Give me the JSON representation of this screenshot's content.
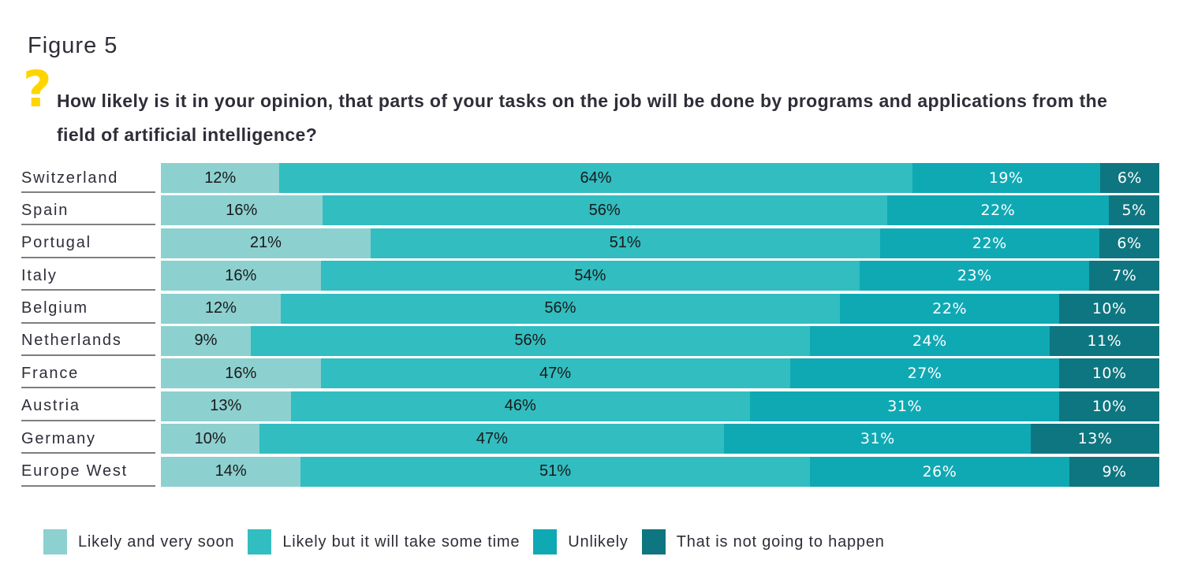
{
  "figure_label": "Figure 5",
  "question": {
    "icon_glyph": "?",
    "icon_color": "#ffd500",
    "lines": [
      "How likely is it in your opinion, that parts of your tasks on the job will be done by programs and applications from the",
      "field of artificial intelligence?"
    ]
  },
  "palette": {
    "ink": "#2e2e38",
    "rule": "#7f7f7f",
    "accent": "#ffd500"
  },
  "chart_data": {
    "type": "bar",
    "variant": "horizontal-stacked-100",
    "value_suffix": "%",
    "legend_position": "bottom",
    "categories": [
      "Switzerland",
      "Spain",
      "Portugal",
      "Italy",
      "Belgium",
      "Netherlands",
      "France",
      "Austria",
      "Germany",
      "Europe West"
    ],
    "series": [
      {
        "name": "Likely and very soon",
        "color": "#8dd0d0",
        "label_style": "dark",
        "values": [
          12,
          16,
          21,
          16,
          12,
          9,
          16,
          13,
          10,
          14
        ]
      },
      {
        "name": "Likely but it will take some time",
        "color": "#32bdc0",
        "label_style": "dark",
        "values": [
          64,
          56,
          51,
          54,
          56,
          56,
          47,
          46,
          47,
          51
        ]
      },
      {
        "name": "Unlikely",
        "color": "#0fa9b4",
        "label_style": "light",
        "values": [
          19,
          22,
          22,
          23,
          22,
          24,
          27,
          31,
          31,
          26
        ]
      },
      {
        "name": "That is not going to happen",
        "color": "#0e7680",
        "label_style": "light",
        "values": [
          6,
          5,
          6,
          7,
          10,
          11,
          10,
          10,
          13,
          9
        ]
      }
    ]
  }
}
